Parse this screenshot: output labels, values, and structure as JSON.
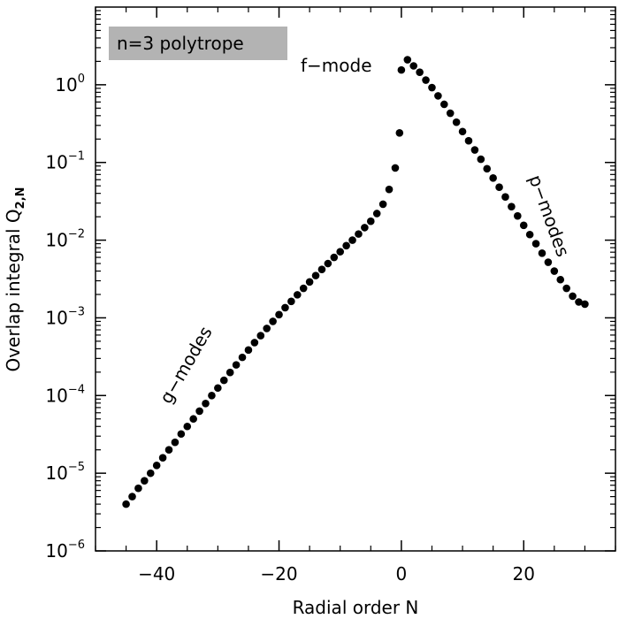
{
  "chart_data": {
    "type": "scatter",
    "title": "",
    "xlabel": "Radial order N",
    "ylabel_main": "Overlap integral Q",
    "ylabel_subscript": "2,N",
    "xlim": [
      -50,
      35
    ],
    "ylim_exponent": [
      -6,
      1
    ],
    "yscale": "log",
    "grid": false,
    "x_ticks": [
      -40,
      -20,
      0,
      20
    ],
    "x_tick_labels": [
      "−40",
      "−20",
      "0",
      "20"
    ],
    "y_tick_base": "10",
    "y_tick_exponents": [
      0,
      -1,
      -2,
      -3,
      -4,
      -5,
      -6
    ],
    "y_tick_exponent_labels": [
      "0",
      "−1",
      "−2",
      "−3",
      "−4",
      "−5",
      "−6"
    ],
    "legend_box": {
      "text": "n=3 polytrope",
      "fill": "#b3b3b3",
      "placement": "top-left"
    },
    "annotations": [
      {
        "text": "f−mode",
        "anchor_N": 0,
        "anchor_Q": 1.5
      },
      {
        "text": "p−modes",
        "anchor_N": 18,
        "anchor_Q": 0.02
      },
      {
        "text": "g−modes",
        "anchor_N": -33,
        "anchor_Q": 0.0004
      }
    ],
    "series": [
      {
        "marker": "filled-circle",
        "color": "#000000",
        "points": [
          [
            -45,
            4e-06
          ],
          [
            -44,
            5e-06
          ],
          [
            -43,
            6.4e-06
          ],
          [
            -42,
            8e-06
          ],
          [
            -41,
            1e-05
          ],
          [
            -40,
            1.26e-05
          ],
          [
            -39,
            1.58e-05
          ],
          [
            -38,
            2e-05
          ],
          [
            -37,
            2.5e-05
          ],
          [
            -36,
            3.2e-05
          ],
          [
            -35,
            4e-05
          ],
          [
            -34,
            5e-05
          ],
          [
            -33,
            6.3e-05
          ],
          [
            -32,
            7.9e-05
          ],
          [
            -31,
            0.0001
          ],
          [
            -30,
            0.000125
          ],
          [
            -29,
            0.000157
          ],
          [
            -28,
            0.000198
          ],
          [
            -27,
            0.000248
          ],
          [
            -26,
            0.00031
          ],
          [
            -25,
            0.000385
          ],
          [
            -24,
            0.00048
          ],
          [
            -23,
            0.00059
          ],
          [
            -22,
            0.00073
          ],
          [
            -21,
            0.0009
          ],
          [
            -20,
            0.0011
          ],
          [
            -19,
            0.00135
          ],
          [
            -18,
            0.00163
          ],
          [
            -17,
            0.00198
          ],
          [
            -16,
            0.0024
          ],
          [
            -15,
            0.0029
          ],
          [
            -14,
            0.0035
          ],
          [
            -13,
            0.0042
          ],
          [
            -12,
            0.005
          ],
          [
            -11,
            0.006
          ],
          [
            -10,
            0.0071
          ],
          [
            -9,
            0.0085
          ],
          [
            -8,
            0.01
          ],
          [
            -7,
            0.012
          ],
          [
            -6,
            0.0145
          ],
          [
            -5,
            0.0175
          ],
          [
            -4,
            0.022
          ],
          [
            -3,
            0.029
          ],
          [
            -2,
            0.045
          ],
          [
            -1,
            0.085
          ],
          [
            -0.3,
            0.24
          ],
          [
            0,
            1.55
          ],
          [
            1,
            2.1
          ],
          [
            2,
            1.75
          ],
          [
            3,
            1.45
          ],
          [
            4,
            1.15
          ],
          [
            5,
            0.92
          ],
          [
            6,
            0.72
          ],
          [
            7,
            0.56
          ],
          [
            8,
            0.43
          ],
          [
            9,
            0.33
          ],
          [
            10,
            0.25
          ],
          [
            11,
            0.19
          ],
          [
            12,
            0.145
          ],
          [
            13,
            0.11
          ],
          [
            14,
            0.083
          ],
          [
            15,
            0.063
          ],
          [
            16,
            0.048
          ],
          [
            17,
            0.036
          ],
          [
            18,
            0.027
          ],
          [
            19,
            0.0205
          ],
          [
            20,
            0.0155
          ],
          [
            21,
            0.0118
          ],
          [
            22,
            0.009
          ],
          [
            23,
            0.0068
          ],
          [
            24,
            0.0052
          ],
          [
            25,
            0.004
          ],
          [
            26,
            0.0031
          ],
          [
            27,
            0.0024
          ],
          [
            28,
            0.0019
          ],
          [
            29,
            0.0016
          ],
          [
            30,
            0.0015
          ]
        ]
      }
    ]
  }
}
